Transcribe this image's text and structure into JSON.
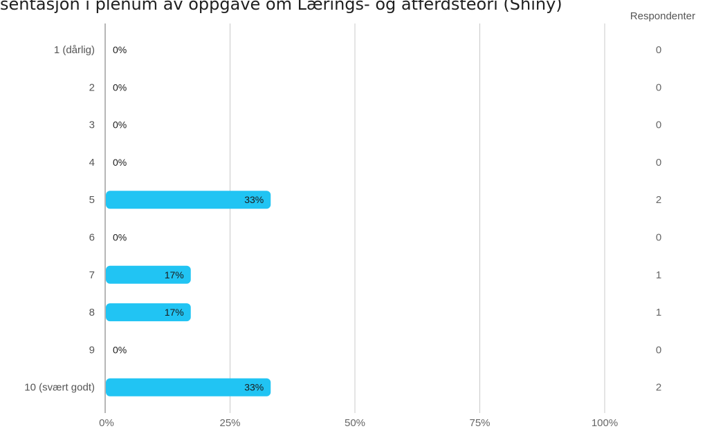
{
  "chart_data": {
    "type": "bar",
    "orientation": "horizontal",
    "title": "sentasjon i plenum av oppgave om Lærings- og atferdsteori (Shiny)",
    "right_header": "Respondenter",
    "categories": [
      "1 (dårlig)",
      "2",
      "3",
      "4",
      "5",
      "6",
      "7",
      "8",
      "9",
      "10 (svært godt)"
    ],
    "values": [
      0,
      0,
      0,
      0,
      33,
      0,
      17,
      17,
      0,
      33
    ],
    "value_labels": [
      "0%",
      "0%",
      "0%",
      "0%",
      "33%",
      "0%",
      "17%",
      "17%",
      "0%",
      "33%"
    ],
    "respondents": [
      "0",
      "0",
      "0",
      "0",
      "2",
      "0",
      "1",
      "1",
      "0",
      "2"
    ],
    "x_ticks": [
      "0%",
      "25%",
      "50%",
      "75%",
      "100%"
    ],
    "xlim": [
      0,
      100
    ],
    "grid": true,
    "bar_color": "#21c4f3",
    "axis_color": "#9e9e9e",
    "grid_color": "#c8c8c8"
  }
}
